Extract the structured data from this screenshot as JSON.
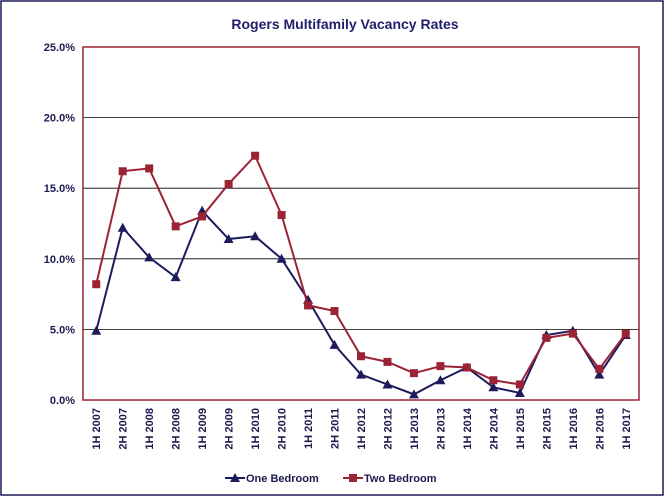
{
  "chart_data": {
    "type": "line",
    "title": "Rogers Multifamily Vacancy Rates",
    "categories": [
      "1H 2007",
      "2H 2007",
      "1H 2008",
      "2H 2008",
      "1H 2009",
      "2H 2009",
      "1H 2010",
      "2H 2010",
      "1H 2011",
      "2H 2011",
      "1H 2012",
      "2H 2012",
      "1H 2013",
      "2H 2013",
      "1H 2014",
      "2H 2014",
      "1H 2015",
      "2H 2015",
      "1H 2016",
      "2H 2016",
      "1H 2017"
    ],
    "series": [
      {
        "name": "One Bedroom",
        "color": "#1c1c5c",
        "marker": "triangle",
        "values": [
          4.9,
          12.2,
          10.1,
          8.7,
          13.4,
          11.4,
          11.6,
          10.0,
          7.1,
          3.9,
          1.8,
          1.1,
          0.4,
          1.4,
          2.3,
          0.9,
          0.5,
          4.6,
          4.9,
          1.8,
          4.6
        ]
      },
      {
        "name": "Two Bedroom",
        "color": "#9b2335",
        "marker": "square",
        "values": [
          8.2,
          16.2,
          16.4,
          12.3,
          13.0,
          15.3,
          17.3,
          13.1,
          6.7,
          6.3,
          3.1,
          2.7,
          1.9,
          2.4,
          2.3,
          1.4,
          1.1,
          4.4,
          4.7,
          2.2,
          4.7
        ]
      }
    ],
    "ylim": [
      0,
      25
    ],
    "yticks": [
      {
        "value": 0,
        "label": "0.0%"
      },
      {
        "value": 5,
        "label": "5.0%"
      },
      {
        "value": 10,
        "label": "10.0%"
      },
      {
        "value": 15,
        "label": "15.0%"
      },
      {
        "value": 20,
        "label": "20.0%"
      },
      {
        "value": 25,
        "label": "25.0%"
      }
    ],
    "grid": true,
    "legend": "bottom"
  }
}
